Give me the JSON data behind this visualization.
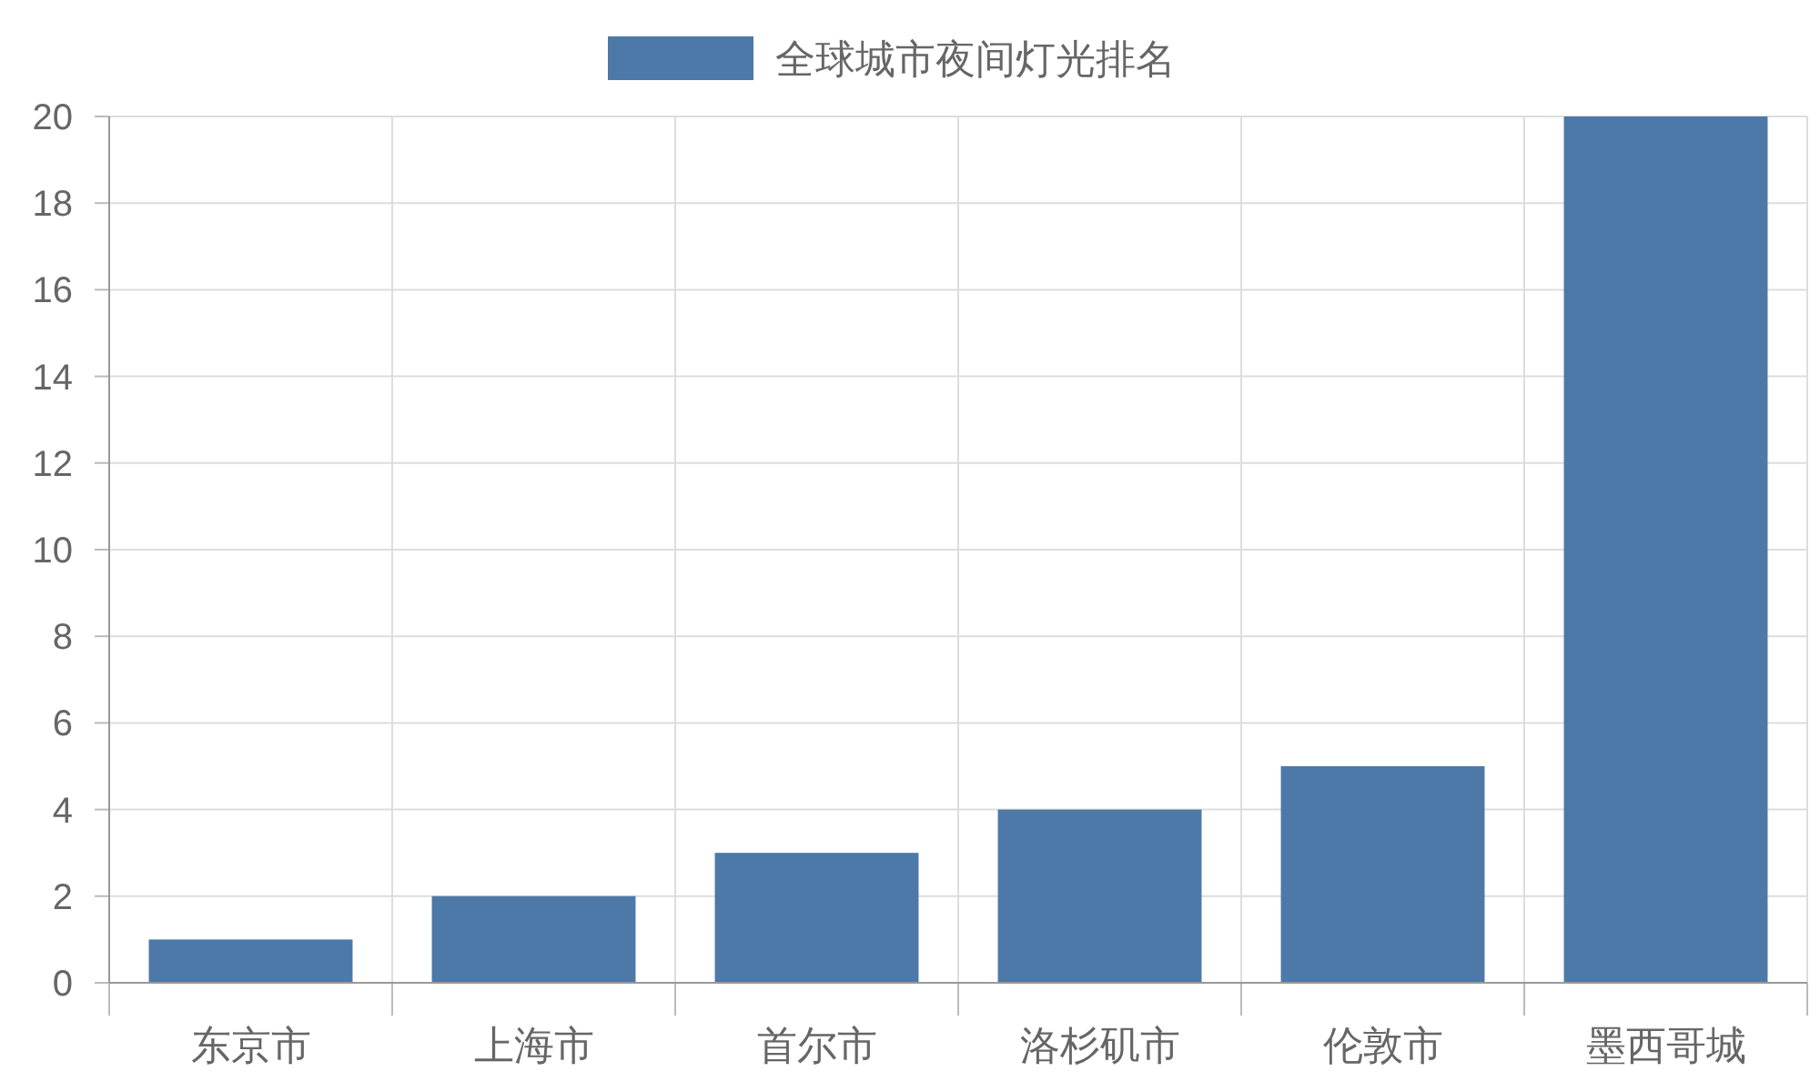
{
  "chart_data": {
    "type": "bar",
    "categories": [
      "东京市",
      "上海市",
      "首尔市",
      "洛杉矶市",
      "伦敦市",
      "墨西哥城"
    ],
    "series": [
      {
        "name": "全球城市夜间灯光排名",
        "color": "#4d79a8",
        "values": [
          1,
          2,
          3,
          4,
          5,
          20
        ]
      }
    ],
    "ylim": [
      0,
      20
    ],
    "yticks": [
      0,
      2,
      4,
      6,
      8,
      10,
      12,
      14,
      16,
      18,
      20
    ],
    "grid": true,
    "legend": "top"
  }
}
